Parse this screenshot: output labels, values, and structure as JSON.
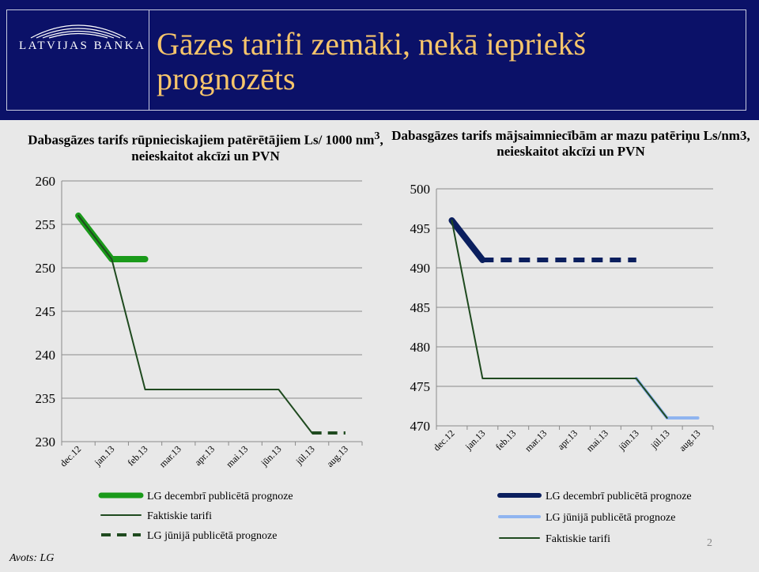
{
  "header": {
    "bank_name": "LATVIJAS BANKA",
    "title": "Gāzes tarifi zemāki, nekā iepriekš prognozēts",
    "background": "#0b1168",
    "title_color": "#f6c56b"
  },
  "chart_data": [
    {
      "type": "line",
      "title_html": "Dabasgāzes tarifs rūpnieciskajiem patērētājiem Ls/ 1000 nm<sup>3</sup>, neieskaitot akcīzi un PVN",
      "categories": [
        "dec.12",
        "jan.13",
        "feb.13",
        "mar.13",
        "apr.13",
        "mai.13",
        "jūn.13",
        "jūl.13",
        "aug.13"
      ],
      "ylim": [
        230,
        260
      ],
      "yticks": [
        230,
        235,
        240,
        245,
        250,
        255,
        260
      ],
      "series": [
        {
          "name": "LG decembrī publicētā prognoze",
          "values": [
            256,
            251,
            251,
            null,
            null,
            null,
            null,
            null,
            null
          ],
          "color": "#1a9a1a",
          "style": "thick"
        },
        {
          "name": "Faktiskie tarifi",
          "values": [
            256,
            251,
            236,
            236,
            236,
            236,
            236,
            231,
            null
          ],
          "color": "#1f4a1f",
          "style": "thin"
        },
        {
          "name": "LG jūnijā publicētā prognoze",
          "values": [
            null,
            null,
            null,
            null,
            null,
            null,
            null,
            231,
            231
          ],
          "color": "#1f4a1f",
          "style": "dashed"
        }
      ]
    },
    {
      "type": "line",
      "title_html": "Dabasgāzes tarifs mājsaimniecībām ar mazu patēriņu Ls/nm3, neieskaitot akcīzi un PVN",
      "categories": [
        "dec.12",
        "jan.13",
        "feb.13",
        "mar.13",
        "apr.13",
        "mai.13",
        "jūn.13",
        "jūl.13",
        "aug.13"
      ],
      "ylim": [
        470,
        500
      ],
      "yticks": [
        470,
        475,
        480,
        485,
        490,
        495,
        500
      ],
      "series": [
        {
          "name": "LG decembrī publicētā prognoze",
          "values": [
            496,
            491,
            491,
            491,
            491,
            491,
            491,
            null,
            null
          ],
          "color": "#0b1f5e",
          "style": "thick-dashed-tail"
        },
        {
          "name": "LG jūnijā publicētā prognoze",
          "values": [
            null,
            null,
            null,
            null,
            null,
            null,
            476,
            471,
            471
          ],
          "color": "#8fb4f0",
          "style": "medium"
        },
        {
          "name": "Faktiskie tarifi",
          "values": [
            496,
            476,
            476,
            476,
            476,
            476,
            476,
            471,
            null
          ],
          "color": "#1f4a1f",
          "style": "thin"
        }
      ]
    }
  ],
  "footer": {
    "source": "Avots: LG",
    "page_number": "2"
  }
}
